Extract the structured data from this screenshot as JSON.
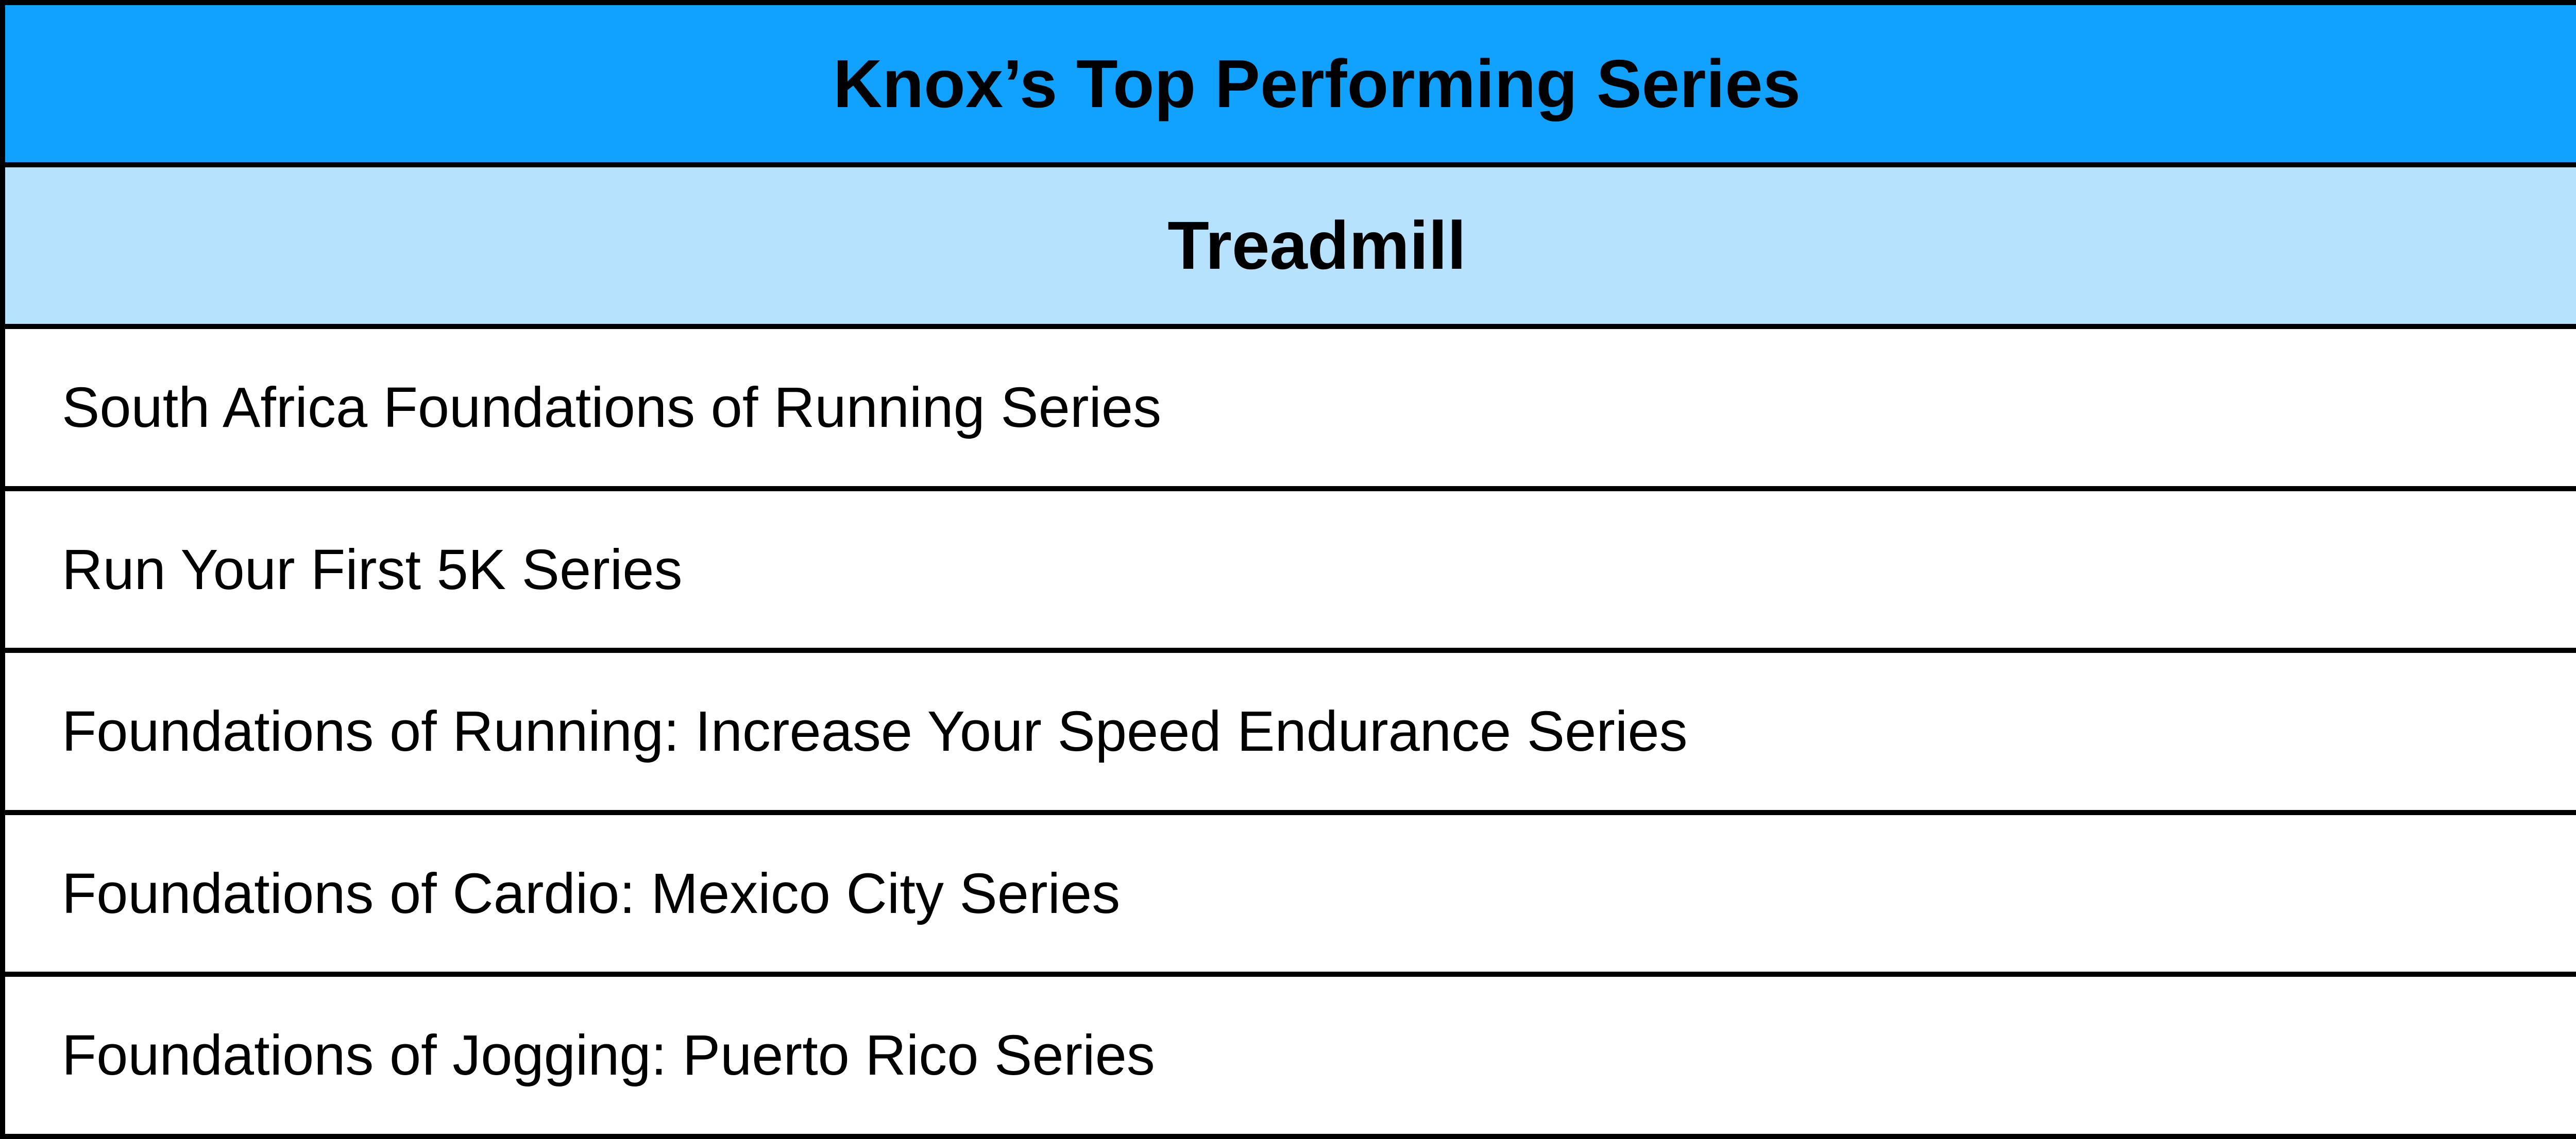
{
  "table": {
    "title": "Knox’s Top Performing Series",
    "category": "Treadmill",
    "items": [
      "South Africa Foundations of Running Series",
      "Run Your First 5K Series",
      "Foundations of Running: Increase Your Speed Endurance Series",
      "Foundations of Cardio: Mexico City Series",
      "Foundations of Jogging: Puerto Rico Series"
    ]
  },
  "colors": {
    "title_background": "#10a2fe",
    "category_background": "#b6e2fd",
    "row_background": "#ffffff",
    "border": "#000000"
  }
}
